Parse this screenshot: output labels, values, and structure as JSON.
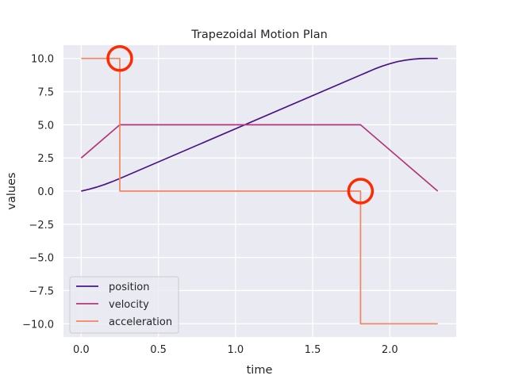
{
  "chart_data": {
    "type": "line",
    "title": "Trapezoidal Motion Plan",
    "xlabel": "time",
    "ylabel": "values",
    "xlim": [
      -0.115,
      2.43
    ],
    "ylim": [
      -11.0,
      11.0
    ],
    "xticks": [
      0.0,
      0.5,
      1.0,
      1.5,
      2.0
    ],
    "xtick_labels": [
      "0.0",
      "0.5",
      "1.0",
      "1.5",
      "2.0"
    ],
    "yticks": [
      10.0,
      7.5,
      5.0,
      2.5,
      0.0,
      -2.5,
      -5.0,
      -7.5,
      -10.0
    ],
    "ytick_labels": [
      "10.0",
      "7.5",
      "5.0",
      "2.5",
      "0.0",
      "−2.5",
      "−5.0",
      "−7.5",
      "−10.0"
    ],
    "grid": true,
    "legend_position": "lower-left",
    "background": "#eaeaf2",
    "series": [
      {
        "name": "position",
        "color": "#4a1486",
        "x": [
          0.0,
          0.05,
          0.1,
          0.15,
          0.2,
          0.25,
          1.81,
          1.85,
          1.9,
          1.95,
          2.0,
          2.05,
          2.1,
          2.15,
          2.2,
          2.25,
          2.31
        ],
        "y": [
          0.0,
          0.14,
          0.3,
          0.49,
          0.71,
          0.95,
          8.75,
          8.95,
          9.2,
          9.42,
          9.61,
          9.76,
          9.87,
          9.95,
          9.99,
          10.0,
          10.0
        ]
      },
      {
        "name": "velocity",
        "color": "#b2377a",
        "x": [
          0.0,
          0.25,
          1.81,
          2.31
        ],
        "y": [
          2.5,
          5.0,
          5.0,
          0.0
        ]
      },
      {
        "name": "acceleration",
        "color": "#f4845f",
        "x": [
          0.0,
          0.25,
          0.25,
          1.81,
          1.81,
          2.31
        ],
        "y": [
          10.0,
          10.0,
          0.0,
          0.0,
          -10.0,
          -10.0
        ]
      }
    ],
    "annotations": [
      {
        "type": "circle",
        "x": 0.25,
        "y": 10.0,
        "color": "#ff2a00"
      },
      {
        "type": "circle",
        "x": 1.81,
        "y": 0.0,
        "color": "#ff2a00"
      }
    ]
  }
}
